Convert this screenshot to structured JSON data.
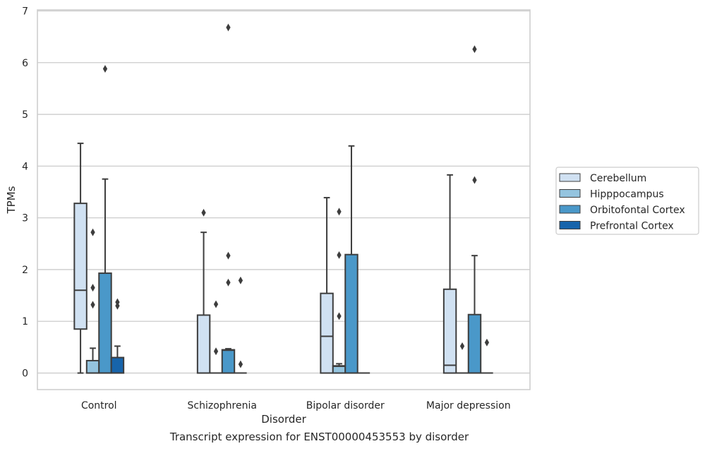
{
  "chart_data": {
    "type": "box",
    "xlabel": "Disorder",
    "ylabel": "TPMs",
    "caption": "Transcript expression for ENST00000453553 by disorder",
    "ylim": [
      -0.32,
      7.02
    ],
    "yticks": [
      0,
      1,
      2,
      3,
      4,
      5,
      6,
      7
    ],
    "grid": "horizontal",
    "legend_position": "outside-right",
    "categories": [
      "Control",
      "Schizophrenia",
      "Bipolar disorder",
      "Major depression"
    ],
    "series": [
      {
        "name": "Cerebellum",
        "color": "#d0e1f2",
        "boxes": [
          {
            "q1": 0.85,
            "median": 1.6,
            "q3": 3.28,
            "whisker_low": 0.0,
            "whisker_high": 4.44,
            "outliers": []
          },
          {
            "q1": 0.0,
            "median": 0.0,
            "q3": 1.12,
            "whisker_low": 0.0,
            "whisker_high": 2.72,
            "outliers": [
              3.1
            ]
          },
          {
            "q1": 0.0,
            "median": 0.71,
            "q3": 1.54,
            "whisker_low": 0.0,
            "whisker_high": 3.39,
            "outliers": []
          },
          {
            "q1": 0.0,
            "median": 0.15,
            "q3": 1.62,
            "whisker_low": 0.0,
            "whisker_high": 3.83,
            "outliers": []
          }
        ]
      },
      {
        "name": "Hipppocampus",
        "color": "#94c4df",
        "boxes": [
          {
            "q1": 0.0,
            "median": 0.0,
            "q3": 0.24,
            "whisker_low": 0.0,
            "whisker_high": 0.48,
            "outliers": [
              2.72,
              1.65,
              1.32
            ]
          },
          {
            "q1": 0.0,
            "median": 0.0,
            "q3": 0.0,
            "whisker_low": 0.0,
            "whisker_high": 0.0,
            "outliers": [
              1.33,
              0.42
            ]
          },
          {
            "q1": 0.0,
            "median": 0.13,
            "q3": 0.14,
            "whisker_low": 0.0,
            "whisker_high": 0.18,
            "outliers": [
              3.12,
              2.28,
              1.1
            ]
          },
          {
            "q1": 0.0,
            "median": 0.0,
            "q3": 0.0,
            "whisker_low": 0.0,
            "whisker_high": 0.0,
            "outliers": [
              0.52
            ]
          }
        ]
      },
      {
        "name": "Orbitofontal Cortex",
        "color": "#4a98c9",
        "boxes": [
          {
            "q1": 0.0,
            "median": 0.0,
            "q3": 1.93,
            "whisker_low": 0.0,
            "whisker_high": 3.75,
            "outliers": [
              5.88
            ]
          },
          {
            "q1": 0.0,
            "median": 0.44,
            "q3": 0.45,
            "whisker_low": 0.0,
            "whisker_high": 0.47,
            "outliers": [
              6.68,
              2.27,
              1.75
            ]
          },
          {
            "q1": 0.0,
            "median": 0.0,
            "q3": 2.29,
            "whisker_low": 0.0,
            "whisker_high": 4.39,
            "outliers": []
          },
          {
            "q1": 0.0,
            "median": 0.0,
            "q3": 1.13,
            "whisker_low": 0.0,
            "whisker_high": 2.27,
            "outliers": [
              6.26,
              3.73
            ]
          }
        ]
      },
      {
        "name": "Prefrontal Cortex",
        "color": "#1764ab",
        "boxes": [
          {
            "q1": 0.0,
            "median": 0.0,
            "q3": 0.3,
            "whisker_low": 0.0,
            "whisker_high": 0.52,
            "outliers": [
              1.37,
              1.3
            ]
          },
          {
            "q1": 0.0,
            "median": 0.0,
            "q3": 0.0,
            "whisker_low": 0.0,
            "whisker_high": 0.0,
            "outliers": [
              1.79,
              0.17
            ]
          },
          {
            "q1": 0.0,
            "median": 0.0,
            "q3": 0.0,
            "whisker_low": 0.0,
            "whisker_high": 0.0,
            "outliers": []
          },
          {
            "q1": 0.0,
            "median": 0.0,
            "q3": 0.0,
            "whisker_low": 0.0,
            "whisker_high": 0.0,
            "outliers": [
              0.59
            ]
          }
        ]
      }
    ]
  }
}
